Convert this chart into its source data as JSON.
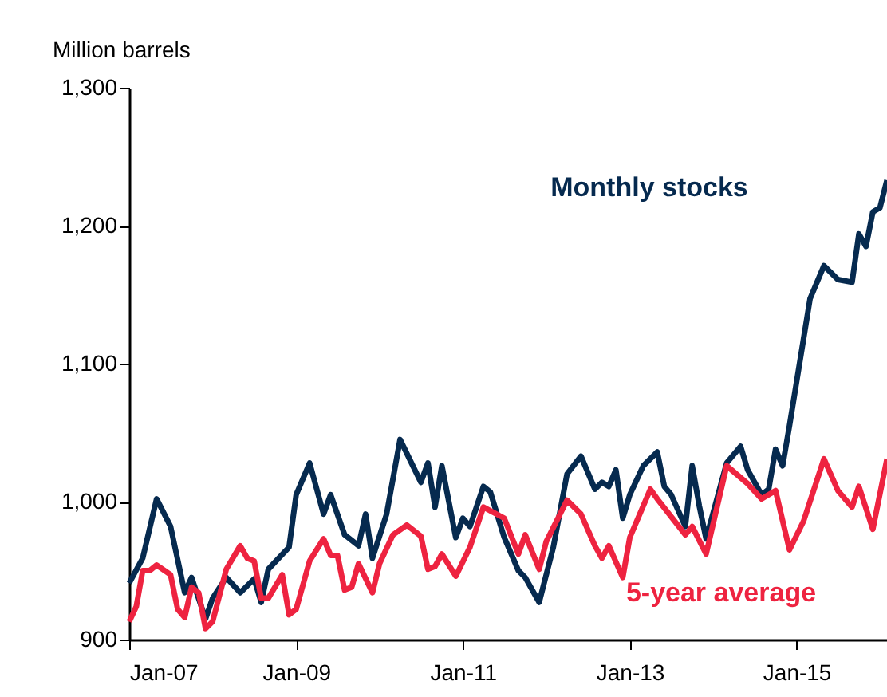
{
  "chart_data": {
    "type": "line",
    "ylabel": "Million barrels",
    "xlim": [
      "2007-01",
      "2016-02"
    ],
    "ylim": [
      900,
      1300
    ],
    "xticks": [
      {
        "value": "2007-01",
        "label": "Jan-07"
      },
      {
        "value": "2009-01",
        "label": "Jan-09"
      },
      {
        "value": "2011-01",
        "label": "Jan-11"
      },
      {
        "value": "2013-01",
        "label": "Jan-13"
      },
      {
        "value": "2015-01",
        "label": "Jan-15"
      }
    ],
    "yticks": [
      {
        "value": 900,
        "label": "900"
      },
      {
        "value": 1000,
        "label": "1,000"
      },
      {
        "value": 1100,
        "label": "1,100"
      },
      {
        "value": 1200,
        "label": "1,200"
      },
      {
        "value": 1300,
        "label": "1,300"
      }
    ],
    "grid": false,
    "marker": "none",
    "line_style": "solid",
    "series": [
      {
        "name": "Monthly stocks",
        "color": "#062a4f",
        "x": [
          "2007-01",
          "2007-03",
          "2007-05",
          "2007-07",
          "2007-09",
          "2007-10",
          "2007-12",
          "2008-01",
          "2008-03",
          "2008-05",
          "2008-07",
          "2008-08",
          "2008-09",
          "2008-12",
          "2009-01",
          "2009-03",
          "2009-05",
          "2009-06",
          "2009-08",
          "2009-10",
          "2009-11",
          "2009-12",
          "2010-02",
          "2010-04",
          "2010-07",
          "2010-08",
          "2010-09",
          "2010-10",
          "2010-12",
          "2011-01",
          "2011-02",
          "2011-04",
          "2011-05",
          "2011-07",
          "2011-09",
          "2011-10",
          "2011-12",
          "2012-02",
          "2012-04",
          "2012-06",
          "2012-08",
          "2012-09",
          "2012-10",
          "2012-11",
          "2012-12",
          "2013-01",
          "2013-03",
          "2013-05",
          "2013-06",
          "2013-07",
          "2013-09",
          "2013-10",
          "2013-11",
          "2013-12",
          "2014-03",
          "2014-05",
          "2014-06",
          "2014-08",
          "2014-09",
          "2014-10",
          "2014-11",
          "2014-12",
          "2015-03",
          "2015-05",
          "2015-07",
          "2015-09",
          "2015-10",
          "2015-11",
          "2015-12",
          "2016-01",
          "2016-02"
        ],
        "values": [
          941,
          959,
          1002,
          982,
          934,
          945,
          915,
          930,
          945,
          934,
          944,
          927,
          951,
          967,
          1005,
          1028,
          991,
          1005,
          976,
          968,
          991,
          959,
          991,
          1045,
          1014,
          1028,
          996,
          1026,
          974,
          988,
          982,
          1011,
          1007,
          974,
          950,
          945,
          927,
          967,
          1020,
          1033,
          1009,
          1014,
          1011,
          1023,
          988,
          1005,
          1026,
          1036,
          1011,
          1005,
          982,
          1026,
          997,
          973,
          1028,
          1040,
          1023,
          1005,
          1009,
          1038,
          1026,
          1055,
          1147,
          1171,
          1161,
          1159,
          1194,
          1185,
          1210,
          1213,
          1233
        ]
      },
      {
        "name": "5-year average",
        "color": "#ee2340",
        "x": [
          "2007-01",
          "2007-02",
          "2007-03",
          "2007-04",
          "2007-05",
          "2007-07",
          "2007-08",
          "2007-09",
          "2007-10",
          "2007-11",
          "2007-12",
          "2008-01",
          "2008-03",
          "2008-05",
          "2008-06",
          "2008-07",
          "2008-08",
          "2008-09",
          "2008-11",
          "2008-12",
          "2009-01",
          "2009-03",
          "2009-05",
          "2009-06",
          "2009-07",
          "2009-08",
          "2009-09",
          "2009-10",
          "2009-12",
          "2010-01",
          "2010-03",
          "2010-05",
          "2010-07",
          "2010-08",
          "2010-09",
          "2010-10",
          "2010-12",
          "2011-02",
          "2011-04",
          "2011-07",
          "2011-09",
          "2011-10",
          "2011-12",
          "2012-01",
          "2012-04",
          "2012-06",
          "2012-08",
          "2012-09",
          "2012-10",
          "2012-12",
          "2013-01",
          "2013-04",
          "2013-05",
          "2013-09",
          "2013-10",
          "2013-12",
          "2014-03",
          "2014-06",
          "2014-08",
          "2014-10",
          "2014-12",
          "2015-02",
          "2015-05",
          "2015-07",
          "2015-09",
          "2015-10",
          "2015-12",
          "2016-02"
        ],
        "values": [
          913,
          924,
          950,
          950,
          954,
          947,
          922,
          916,
          938,
          934,
          908,
          913,
          951,
          968,
          959,
          957,
          930,
          930,
          947,
          918,
          922,
          957,
          973,
          961,
          961,
          936,
          938,
          955,
          934,
          955,
          976,
          983,
          975,
          951,
          953,
          962,
          946,
          967,
          996,
          988,
          962,
          976,
          951,
          971,
          1001,
          991,
          968,
          959,
          968,
          945,
          974,
          1009,
          1002,
          976,
          982,
          962,
          1026,
          1013,
          1002,
          1008,
          965,
          986,
          1031,
          1008,
          996,
          1011,
          980,
          1031
        ]
      }
    ]
  }
}
